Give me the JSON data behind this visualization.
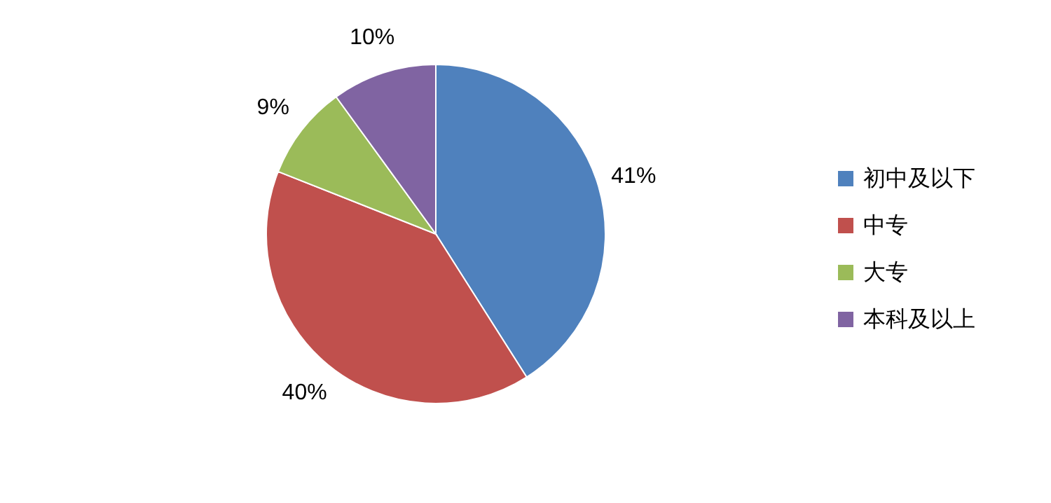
{
  "chart_data": {
    "type": "pie",
    "categories": [
      "初中及以下",
      "中专",
      "大专",
      "本科及以上"
    ],
    "values": [
      41,
      40,
      9,
      10
    ],
    "colors": [
      "#4f81bd",
      "#c0504d",
      "#9bbb59",
      "#8064a2"
    ],
    "value_labels": [
      "41%",
      "40%",
      "9%",
      "10%"
    ],
    "legend": "right"
  }
}
